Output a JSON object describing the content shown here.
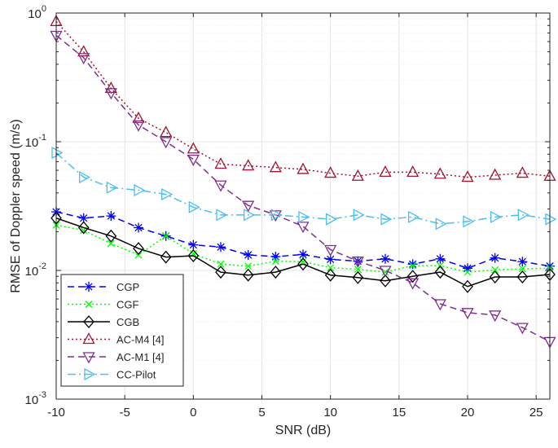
{
  "chart_data": {
    "type": "line",
    "title": "",
    "xlabel": "SNR (dB)",
    "ylabel": "RMSE of Doppler speed (m/s)",
    "xlim": [
      -10,
      26
    ],
    "ylim": [
      0.001,
      1
    ],
    "yscale": "log",
    "grid": true,
    "legend_position": "bottom-left",
    "x_ticks": [
      -10,
      -5,
      0,
      5,
      10,
      15,
      20,
      25
    ],
    "x_tick_labels": [
      "-10",
      "-5",
      "0",
      "5",
      "10",
      "15",
      "20",
      "25"
    ],
    "y_ticks": [
      {
        "value": 1,
        "base": "10",
        "exp": "0"
      },
      {
        "value": 0.1,
        "base": "10",
        "exp": "-1"
      },
      {
        "value": 0.01,
        "base": "10",
        "exp": "-2"
      },
      {
        "value": 0.001,
        "base": "10",
        "exp": "-3"
      }
    ],
    "x": [
      -10,
      -8,
      -6,
      -4,
      -2,
      0,
      2,
      4,
      6,
      8,
      10,
      12,
      14,
      16,
      18,
      20,
      22,
      24,
      26
    ],
    "series": [
      {
        "name": "CGP",
        "color": "#0000ff",
        "dash": "8,5",
        "marker": "star",
        "values": [
          0.0285,
          0.0255,
          0.0265,
          0.0215,
          0.0185,
          0.0158,
          0.0152,
          0.0132,
          0.0128,
          0.0133,
          0.0122,
          0.0118,
          0.0123,
          0.0112,
          0.0123,
          0.0104,
          0.0125,
          0.0117,
          0.0108
        ]
      },
      {
        "name": "CGF",
        "color": "#00ff00",
        "dash": "2,3",
        "marker": "x",
        "values": [
          0.0225,
          0.0205,
          0.0162,
          0.0132,
          0.0185,
          0.0135,
          0.0112,
          0.0108,
          0.0118,
          0.0117,
          0.0105,
          0.0102,
          0.0097,
          0.0109,
          0.0109,
          0.0097,
          0.0101,
          0.0103,
          0.0104
        ]
      },
      {
        "name": "CGB",
        "color": "#000000",
        "dash": "",
        "marker": "diamond",
        "values": [
          0.0255,
          0.0215,
          0.0185,
          0.0148,
          0.0127,
          0.013,
          0.0097,
          0.0092,
          0.0097,
          0.0112,
          0.0092,
          0.0088,
          0.0083,
          0.009,
          0.0097,
          0.0075,
          0.0089,
          0.0089,
          0.0093
        ]
      },
      {
        "name": "AC-M4 [4]",
        "color": "#a2142f",
        "dash": "2,3",
        "marker": "triangle-up",
        "values": [
          0.86,
          0.5,
          0.26,
          0.152,
          0.118,
          0.088,
          0.067,
          0.065,
          0.063,
          0.061,
          0.057,
          0.054,
          0.058,
          0.058,
          0.056,
          0.053,
          0.055,
          0.057,
          0.054
        ]
      },
      {
        "name": "AC-M1 [4]",
        "color": "#7e2f8e",
        "dash": "8,5",
        "marker": "triangle-down",
        "values": [
          0.67,
          0.45,
          0.24,
          0.135,
          0.1,
          0.073,
          0.046,
          0.032,
          0.027,
          0.022,
          0.0145,
          0.0118,
          0.01,
          0.008,
          0.0055,
          0.0047,
          0.0045,
          0.0036,
          0.0028
        ]
      },
      {
        "name": "CC-Pilot",
        "color": "#4dbeee",
        "dash": "10,4,2,4",
        "marker": "triangle-right",
        "values": [
          0.082,
          0.053,
          0.044,
          0.042,
          0.039,
          0.031,
          0.027,
          0.027,
          0.027,
          0.026,
          0.025,
          0.027,
          0.025,
          0.026,
          0.023,
          0.024,
          0.026,
          0.027,
          0.025
        ]
      }
    ]
  }
}
